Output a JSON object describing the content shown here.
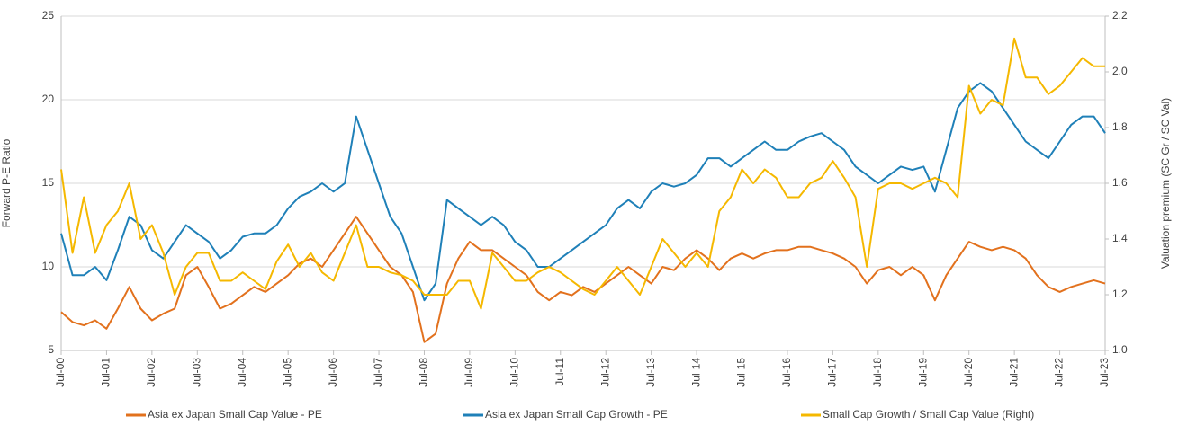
{
  "chart_data": {
    "type": "line",
    "ylabel": "Forward P-E Ratio",
    "y2label": "Valuation premium (SC Gr / SC Val)",
    "x": [
      2000.5,
      2000.75,
      2001,
      2001.25,
      2001.5,
      2001.75,
      2002,
      2002.25,
      2002.5,
      2002.75,
      2003,
      2003.25,
      2003.5,
      2003.75,
      2004,
      2004.25,
      2004.5,
      2004.75,
      2005,
      2005.25,
      2005.5,
      2005.75,
      2006,
      2006.25,
      2006.5,
      2006.75,
      2007,
      2007.25,
      2007.5,
      2007.75,
      2008,
      2008.25,
      2008.5,
      2008.75,
      2009,
      2009.25,
      2009.5,
      2009.75,
      2010,
      2010.25,
      2010.5,
      2010.75,
      2011,
      2011.25,
      2011.5,
      2011.75,
      2012,
      2012.25,
      2012.5,
      2012.75,
      2013,
      2013.25,
      2013.5,
      2013.75,
      2014,
      2014.25,
      2014.5,
      2014.75,
      2015,
      2015.25,
      2015.5,
      2015.75,
      2016,
      2016.25,
      2016.5,
      2016.75,
      2017,
      2017.25,
      2017.5,
      2017.75,
      2018,
      2018.25,
      2018.5,
      2018.75,
      2019,
      2019.25,
      2019.5,
      2019.75,
      2020,
      2020.25,
      2020.5,
      2020.75,
      2021,
      2021.25,
      2021.5,
      2021.75,
      2022,
      2022.25,
      2022.5,
      2022.75,
      2023,
      2023.25,
      2023.5
    ],
    "series": [
      {
        "name": "Asia ex Japan Small Cap Value - PE",
        "color": "#e2711d",
        "axis": "y",
        "values": [
          7.3,
          6.7,
          6.5,
          6.8,
          6.3,
          7.5,
          8.8,
          7.5,
          6.8,
          7.2,
          7.5,
          9.5,
          10.0,
          8.8,
          7.5,
          7.8,
          8.3,
          8.8,
          8.5,
          9.0,
          9.5,
          10.2,
          10.5,
          10.0,
          11.0,
          12.0,
          13.0,
          12.0,
          11.0,
          10.0,
          9.5,
          8.5,
          5.5,
          6.0,
          9.0,
          10.5,
          11.5,
          11.0,
          11.0,
          10.5,
          10.0,
          9.5,
          8.5,
          8.0,
          8.5,
          8.3,
          8.8,
          8.5,
          9.0,
          9.5,
          10.0,
          9.5,
          9.0,
          10.0,
          9.8,
          10.5,
          11.0,
          10.5,
          9.8,
          10.5,
          10.8,
          10.5,
          10.8,
          11.0,
          11.0,
          11.2,
          11.2,
          11.0,
          10.8,
          10.5,
          10.0,
          9.0,
          9.8,
          10.0,
          9.5,
          10.0,
          9.5,
          8.0,
          9.5,
          10.5,
          11.5,
          11.2,
          11.0,
          11.2,
          11.0,
          10.5,
          9.5,
          8.8,
          8.5,
          8.8,
          9.0,
          9.2,
          9.0
        ]
      },
      {
        "name": "Asia ex Japan Small Cap Growth - PE",
        "color": "#1f80b8",
        "axis": "y",
        "values": [
          12,
          9.5,
          9.5,
          10,
          9.2,
          11,
          13,
          12.5,
          11,
          10.5,
          11.5,
          12.5,
          12,
          11.5,
          10.5,
          11,
          11.8,
          12,
          12,
          12.5,
          13.5,
          14.2,
          14.5,
          15,
          14.5,
          15,
          19,
          17,
          15,
          13,
          12,
          10,
          8,
          9,
          14,
          13.5,
          13,
          12.5,
          13,
          12.5,
          11.5,
          11,
          10,
          10,
          10.5,
          11,
          11.5,
          12,
          12.5,
          13.5,
          14,
          13.5,
          14.5,
          15,
          14.8,
          15,
          15.5,
          16.5,
          16.5,
          16,
          16.5,
          17,
          17.5,
          17,
          17,
          17.5,
          17.8,
          18,
          17.5,
          17,
          16,
          15.5,
          15,
          15.5,
          16,
          15.8,
          16,
          14.5,
          17,
          19.5,
          20.5,
          21,
          20.5,
          19.5,
          18.5,
          17.5,
          17,
          16.5,
          17.5,
          18.5,
          19,
          19,
          18
        ]
      },
      {
        "name": "Small Cap Growth / Small Cap Value (Right)",
        "color": "#f5b800",
        "axis": "y2",
        "values": [
          1.65,
          1.35,
          1.55,
          1.35,
          1.45,
          1.5,
          1.6,
          1.4,
          1.45,
          1.35,
          1.2,
          1.3,
          1.35,
          1.35,
          1.25,
          1.25,
          1.28,
          1.25,
          1.22,
          1.32,
          1.38,
          1.3,
          1.35,
          1.28,
          1.25,
          1.35,
          1.45,
          1.3,
          1.3,
          1.28,
          1.27,
          1.25,
          1.2,
          1.2,
          1.2,
          1.25,
          1.25,
          1.15,
          1.35,
          1.3,
          1.25,
          1.25,
          1.28,
          1.3,
          1.28,
          1.25,
          1.22,
          1.2,
          1.25,
          1.3,
          1.25,
          1.2,
          1.3,
          1.4,
          1.35,
          1.3,
          1.35,
          1.3,
          1.5,
          1.55,
          1.65,
          1.6,
          1.65,
          1.62,
          1.55,
          1.55,
          1.6,
          1.62,
          1.68,
          1.62,
          1.55,
          1.3,
          1.58,
          1.6,
          1.6,
          1.58,
          1.6,
          1.62,
          1.6,
          1.55,
          1.95,
          1.85,
          1.9,
          1.88,
          2.12,
          1.98,
          1.98,
          1.92,
          1.95,
          2.0,
          2.05,
          2.02,
          2.02
        ]
      }
    ],
    "xlim": [
      2000.5,
      2023.5
    ],
    "xticks": [
      {
        "value": 2000.5,
        "label": "Jul-00"
      },
      {
        "value": 2001.5,
        "label": "Jul-01"
      },
      {
        "value": 2002.5,
        "label": "Jul-02"
      },
      {
        "value": 2003.5,
        "label": "Jul-03"
      },
      {
        "value": 2004.5,
        "label": "Jul-04"
      },
      {
        "value": 2005.5,
        "label": "Jul-05"
      },
      {
        "value": 2006.5,
        "label": "Jul-06"
      },
      {
        "value": 2007.5,
        "label": "Jul-07"
      },
      {
        "value": 2008.5,
        "label": "Jul-08"
      },
      {
        "value": 2009.5,
        "label": "Jul-09"
      },
      {
        "value": 2010.5,
        "label": "Jul-10"
      },
      {
        "value": 2011.5,
        "label": "Jul-11"
      },
      {
        "value": 2012.5,
        "label": "Jul-12"
      },
      {
        "value": 2013.5,
        "label": "Jul-13"
      },
      {
        "value": 2014.5,
        "label": "Jul-14"
      },
      {
        "value": 2015.5,
        "label": "Jul-15"
      },
      {
        "value": 2016.5,
        "label": "Jul-16"
      },
      {
        "value": 2017.5,
        "label": "Jul-17"
      },
      {
        "value": 2018.5,
        "label": "Jul-18"
      },
      {
        "value": 2019.5,
        "label": "Jul-19"
      },
      {
        "value": 2020.5,
        "label": "Jul-20"
      },
      {
        "value": 2021.5,
        "label": "Jul-21"
      },
      {
        "value": 2022.5,
        "label": "Jul-22"
      },
      {
        "value": 2023.5,
        "label": "Jul-23"
      }
    ],
    "ylim": [
      5,
      25
    ],
    "yticks": [
      5,
      10,
      15,
      20,
      25
    ],
    "y2lim": [
      1.0,
      2.2
    ],
    "y2ticks": [
      {
        "value": 1.0,
        "label": "1.0"
      },
      1.2,
      1.4,
      1.6,
      1.8,
      {
        "value": 2.0,
        "label": "2.0"
      },
      2.2
    ],
    "grid": true,
    "legend": "bottom"
  }
}
